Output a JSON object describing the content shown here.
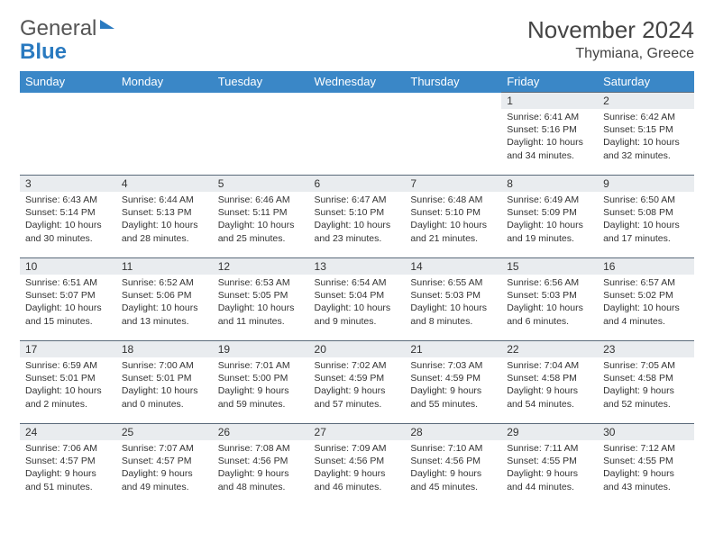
{
  "brand": {
    "part1": "General",
    "part2": "Blue"
  },
  "title": "November 2024",
  "location": "Thymiana, Greece",
  "colors": {
    "header_bg": "#3a87c7",
    "header_text": "#ffffff",
    "daynum_bg": "#e9ecef",
    "border": "#5a6a7a",
    "brand_gray": "#555555",
    "brand_blue": "#2a7ac0"
  },
  "fonts": {
    "title_size": 26,
    "subtitle_size": 16,
    "header_size": 13,
    "daynum_size": 12,
    "body_size": 10.5
  },
  "day_headers": [
    "Sunday",
    "Monday",
    "Tuesday",
    "Wednesday",
    "Thursday",
    "Friday",
    "Saturday"
  ],
  "weeks": [
    [
      null,
      null,
      null,
      null,
      null,
      {
        "d": "1",
        "sr": "Sunrise: 6:41 AM",
        "ss": "Sunset: 5:16 PM",
        "dl": "Daylight: 10 hours and 34 minutes."
      },
      {
        "d": "2",
        "sr": "Sunrise: 6:42 AM",
        "ss": "Sunset: 5:15 PM",
        "dl": "Daylight: 10 hours and 32 minutes."
      }
    ],
    [
      {
        "d": "3",
        "sr": "Sunrise: 6:43 AM",
        "ss": "Sunset: 5:14 PM",
        "dl": "Daylight: 10 hours and 30 minutes."
      },
      {
        "d": "4",
        "sr": "Sunrise: 6:44 AM",
        "ss": "Sunset: 5:13 PM",
        "dl": "Daylight: 10 hours and 28 minutes."
      },
      {
        "d": "5",
        "sr": "Sunrise: 6:46 AM",
        "ss": "Sunset: 5:11 PM",
        "dl": "Daylight: 10 hours and 25 minutes."
      },
      {
        "d": "6",
        "sr": "Sunrise: 6:47 AM",
        "ss": "Sunset: 5:10 PM",
        "dl": "Daylight: 10 hours and 23 minutes."
      },
      {
        "d": "7",
        "sr": "Sunrise: 6:48 AM",
        "ss": "Sunset: 5:10 PM",
        "dl": "Daylight: 10 hours and 21 minutes."
      },
      {
        "d": "8",
        "sr": "Sunrise: 6:49 AM",
        "ss": "Sunset: 5:09 PM",
        "dl": "Daylight: 10 hours and 19 minutes."
      },
      {
        "d": "9",
        "sr": "Sunrise: 6:50 AM",
        "ss": "Sunset: 5:08 PM",
        "dl": "Daylight: 10 hours and 17 minutes."
      }
    ],
    [
      {
        "d": "10",
        "sr": "Sunrise: 6:51 AM",
        "ss": "Sunset: 5:07 PM",
        "dl": "Daylight: 10 hours and 15 minutes."
      },
      {
        "d": "11",
        "sr": "Sunrise: 6:52 AM",
        "ss": "Sunset: 5:06 PM",
        "dl": "Daylight: 10 hours and 13 minutes."
      },
      {
        "d": "12",
        "sr": "Sunrise: 6:53 AM",
        "ss": "Sunset: 5:05 PM",
        "dl": "Daylight: 10 hours and 11 minutes."
      },
      {
        "d": "13",
        "sr": "Sunrise: 6:54 AM",
        "ss": "Sunset: 5:04 PM",
        "dl": "Daylight: 10 hours and 9 minutes."
      },
      {
        "d": "14",
        "sr": "Sunrise: 6:55 AM",
        "ss": "Sunset: 5:03 PM",
        "dl": "Daylight: 10 hours and 8 minutes."
      },
      {
        "d": "15",
        "sr": "Sunrise: 6:56 AM",
        "ss": "Sunset: 5:03 PM",
        "dl": "Daylight: 10 hours and 6 minutes."
      },
      {
        "d": "16",
        "sr": "Sunrise: 6:57 AM",
        "ss": "Sunset: 5:02 PM",
        "dl": "Daylight: 10 hours and 4 minutes."
      }
    ],
    [
      {
        "d": "17",
        "sr": "Sunrise: 6:59 AM",
        "ss": "Sunset: 5:01 PM",
        "dl": "Daylight: 10 hours and 2 minutes."
      },
      {
        "d": "18",
        "sr": "Sunrise: 7:00 AM",
        "ss": "Sunset: 5:01 PM",
        "dl": "Daylight: 10 hours and 0 minutes."
      },
      {
        "d": "19",
        "sr": "Sunrise: 7:01 AM",
        "ss": "Sunset: 5:00 PM",
        "dl": "Daylight: 9 hours and 59 minutes."
      },
      {
        "d": "20",
        "sr": "Sunrise: 7:02 AM",
        "ss": "Sunset: 4:59 PM",
        "dl": "Daylight: 9 hours and 57 minutes."
      },
      {
        "d": "21",
        "sr": "Sunrise: 7:03 AM",
        "ss": "Sunset: 4:59 PM",
        "dl": "Daylight: 9 hours and 55 minutes."
      },
      {
        "d": "22",
        "sr": "Sunrise: 7:04 AM",
        "ss": "Sunset: 4:58 PM",
        "dl": "Daylight: 9 hours and 54 minutes."
      },
      {
        "d": "23",
        "sr": "Sunrise: 7:05 AM",
        "ss": "Sunset: 4:58 PM",
        "dl": "Daylight: 9 hours and 52 minutes."
      }
    ],
    [
      {
        "d": "24",
        "sr": "Sunrise: 7:06 AM",
        "ss": "Sunset: 4:57 PM",
        "dl": "Daylight: 9 hours and 51 minutes."
      },
      {
        "d": "25",
        "sr": "Sunrise: 7:07 AM",
        "ss": "Sunset: 4:57 PM",
        "dl": "Daylight: 9 hours and 49 minutes."
      },
      {
        "d": "26",
        "sr": "Sunrise: 7:08 AM",
        "ss": "Sunset: 4:56 PM",
        "dl": "Daylight: 9 hours and 48 minutes."
      },
      {
        "d": "27",
        "sr": "Sunrise: 7:09 AM",
        "ss": "Sunset: 4:56 PM",
        "dl": "Daylight: 9 hours and 46 minutes."
      },
      {
        "d": "28",
        "sr": "Sunrise: 7:10 AM",
        "ss": "Sunset: 4:56 PM",
        "dl": "Daylight: 9 hours and 45 minutes."
      },
      {
        "d": "29",
        "sr": "Sunrise: 7:11 AM",
        "ss": "Sunset: 4:55 PM",
        "dl": "Daylight: 9 hours and 44 minutes."
      },
      {
        "d": "30",
        "sr": "Sunrise: 7:12 AM",
        "ss": "Sunset: 4:55 PM",
        "dl": "Daylight: 9 hours and 43 minutes."
      }
    ]
  ]
}
